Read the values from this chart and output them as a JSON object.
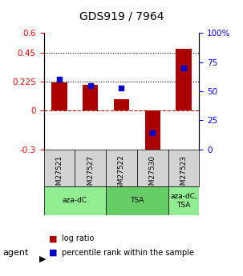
{
  "title": "GDS919 / 7964",
  "samples": [
    "GSM27521",
    "GSM27527",
    "GSM27522",
    "GSM27530",
    "GSM27523"
  ],
  "log_ratios": [
    0.22,
    0.2,
    0.09,
    -0.33,
    0.48
  ],
  "percentile_ranks": [
    0.6,
    0.55,
    0.53,
    0.14,
    0.7
  ],
  "agents": [
    {
      "label": "aza-dC",
      "cols": [
        0,
        1
      ],
      "color": "#90EE90"
    },
    {
      "label": "TSA",
      "cols": [
        2,
        3
      ],
      "color": "#66CC66"
    },
    {
      "label": "aza-dC,\nTSA",
      "cols": [
        4,
        4
      ],
      "color": "#90EE90"
    }
  ],
  "ylim_left": [
    -0.3,
    0.6
  ],
  "ylim_right": [
    0,
    100
  ],
  "yticks_left": [
    -0.3,
    0.0,
    0.225,
    0.45,
    0.6
  ],
  "ytick_labels_left": [
    "-0.3",
    "0",
    "0.225",
    "0.45",
    "0.6"
  ],
  "yticks_right": [
    0,
    25,
    50,
    75,
    100
  ],
  "ytick_labels_right": [
    "0",
    "25",
    "50",
    "75",
    "100%"
  ],
  "hlines": [
    0.225,
    0.45
  ],
  "bar_color": "#AA0000",
  "dot_color": "#0000CC",
  "zero_line_color": "#CC0000",
  "bar_width": 0.5
}
